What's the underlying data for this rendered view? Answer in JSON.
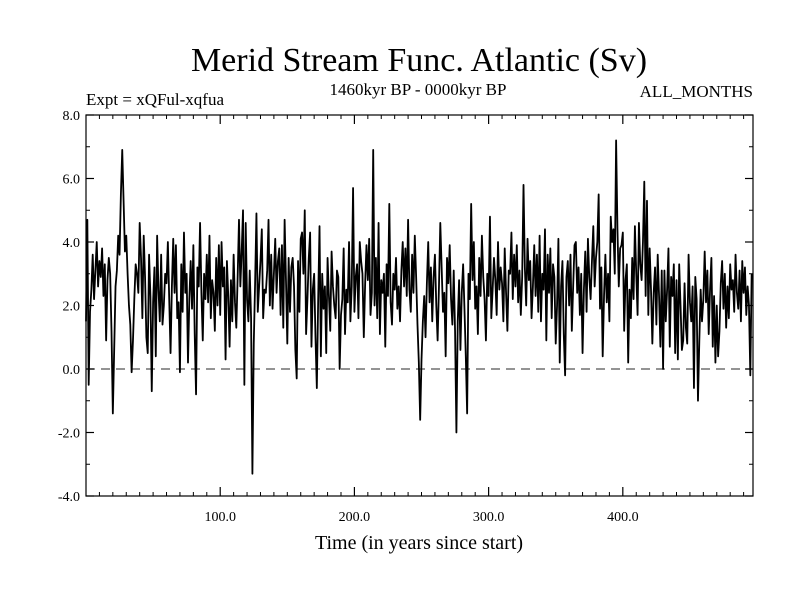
{
  "chart_data": {
    "type": "line",
    "title": "Merid Stream Func. Atlantic (Sv)",
    "subtitle_left": "Expt = xQFul-xqfua",
    "subtitle_center": "1460kyr BP - 0000kyr BP",
    "subtitle_right": "ALL_MONTHS",
    "xlabel": "Time (in years since start)",
    "ylabel": "",
    "xlim": [
      0,
      497
    ],
    "ylim": [
      -4.0,
      8.0
    ],
    "xticks": [
      100,
      200,
      300,
      400
    ],
    "xtick_labels": [
      "100.0",
      "200.0",
      "300.0",
      "400.0"
    ],
    "yticks": [
      -4,
      -2,
      0,
      2,
      4,
      6,
      8
    ],
    "ytick_labels": [
      "-4.0",
      "-2.0",
      "0.0",
      "2.0",
      "4.0",
      "6.0",
      "8.0"
    ],
    "reference_line": {
      "y": 0.0,
      "style": "dashed"
    },
    "line_color": "#000000",
    "series": [
      {
        "name": "Merid Stream Func. Atlantic",
        "x_start": 0,
        "x_step": 1,
        "values": [
          1.5,
          4.7,
          -0.5,
          1.8,
          2.5,
          3.6,
          2.2,
          3.1,
          4.0,
          2.6,
          3.4,
          2.9,
          3.8,
          2.3,
          3.3,
          0.9,
          2.8,
          3.5,
          3.0,
          1.2,
          -1.4,
          0.6,
          2.6,
          3.1,
          4.2,
          3.6,
          5.5,
          6.9,
          5.3,
          3.7,
          4.2,
          3.0,
          2.0,
          1.4,
          -0.1,
          0.9,
          2.2,
          3.3,
          3.0,
          2.4,
          4.6,
          3.5,
          1.6,
          4.2,
          2.9,
          1.0,
          0.5,
          3.6,
          2.3,
          -0.7,
          2.1,
          3.2,
          0.4,
          4.2,
          2.5,
          1.5,
          3.6,
          1.4,
          2.0,
          3.0,
          2.7,
          4.0,
          2.2,
          0.5,
          2.6,
          4.1,
          2.4,
          3.9,
          1.6,
          2.1,
          -0.1,
          3.3,
          1.8,
          4.3,
          2.4,
          3.0,
          0.2,
          2.2,
          3.4,
          1.9,
          3.9,
          1.1,
          -0.8,
          3.2,
          2.6,
          4.6,
          2.4,
          0.9,
          3.0,
          2.2,
          3.6,
          2.1,
          4.2,
          1.6,
          2.8,
          2.4,
          1.2,
          3.5,
          2.0,
          3.9,
          1.7,
          4.0,
          2.6,
          3.2,
          0.3,
          3.4,
          2.3,
          0.7,
          2.8,
          1.5,
          3.6,
          2.1,
          1.3,
          2.9,
          4.7,
          2.6,
          3.7,
          5.0,
          -0.5,
          4.6,
          2.2,
          1.5,
          3.1,
          1.6,
          -3.3,
          0.8,
          2.7,
          4.9,
          1.8,
          2.6,
          3.4,
          4.4,
          1.6,
          2.5,
          2.4,
          3.1,
          4.7,
          2.0,
          3.6,
          1.9,
          3.0,
          4.1,
          2.4,
          3.4,
          3.8,
          1.7,
          3.9,
          1.3,
          4.7,
          2.8,
          0.8,
          3.5,
          1.8,
          3.2,
          3.5,
          2.6,
          0.6,
          -0.3,
          3.4,
          1.8,
          4.1,
          4.3,
          3.0,
          5.0,
          1.1,
          2.2,
          3.5,
          4.3,
          0.7,
          2.5,
          3.0,
          1.0,
          -0.6,
          2.2,
          4.5,
          0.4,
          3.0,
          1.9,
          2.6,
          0.5,
          3.5,
          2.3,
          1.2,
          3.7,
          2.6,
          2.0,
          1.6,
          3.1,
          2.9,
          0.0,
          1.7,
          2.2,
          3.8,
          1.1,
          2.5,
          2.1,
          4.0,
          1.5,
          2.6,
          5.7,
          1.8,
          2.9,
          3.3,
          1.6,
          4.0,
          3.4,
          3.0,
          1.0,
          2.7,
          3.9,
          2.8,
          4.1,
          1.7,
          2.4,
          6.9,
          2.0,
          3.5,
          1.6,
          4.6,
          1.1,
          2.8,
          2.4,
          3.0,
          0.7,
          3.3,
          2.3,
          5.2,
          2.1,
          1.4,
          3.0,
          2.5,
          3.5,
          1.9,
          2.6,
          1.5,
          3.1,
          4.0,
          2.6,
          3.8,
          2.3,
          4.7,
          2.5,
          1.8,
          3.6,
          2.4,
          4.2,
          2.9,
          1.4,
          0.2,
          -1.6,
          0.3,
          1.5,
          2.3,
          1.0,
          2.7,
          4.0,
          2.1,
          3.2,
          1.5,
          2.9,
          3.6,
          2.0,
          0.9,
          2.6,
          4.6,
          3.2,
          1.8,
          2.4,
          0.4,
          3.5,
          2.7,
          3.9,
          2.2,
          1.4,
          3.1,
          1.2,
          -2.0,
          1.5,
          2.8,
          0.6,
          2.4,
          3.3,
          1.9,
          0.4,
          -1.4,
          3.0,
          2.2,
          5.2,
          2.8,
          4.0,
          1.9,
          2.6,
          1.1,
          3.5,
          2.3,
          4.2,
          2.9,
          2.2,
          0.9,
          3.0,
          2.3,
          4.8,
          1.6,
          2.5,
          3.5,
          2.8,
          1.7,
          4.0,
          2.5,
          3.2,
          2.7,
          1.5,
          3.8,
          2.4,
          1.2,
          3.1,
          3.0,
          4.3,
          2.2,
          3.6,
          2.6,
          3.9,
          2.1,
          3.1,
          1.7,
          2.9,
          5.8,
          3.2,
          2.0,
          4.1,
          2.8,
          3.4,
          1.6,
          2.6,
          3.9,
          2.3,
          3.6,
          1.8,
          4.2,
          1.5,
          3.0,
          2.5,
          4.4,
          0.9,
          3.6,
          2.4,
          3.8,
          1.6,
          3.3,
          2.9,
          0.8,
          2.0,
          4.1,
          0.2,
          2.6,
          3.4,
          1.1,
          -0.2,
          2.9,
          3.4,
          2.0,
          3.6,
          1.2,
          2.6,
          3.9,
          4.0,
          2.4,
          3.2,
          1.7,
          3.0,
          0.5,
          2.5,
          3.7,
          1.8,
          4.1,
          2.9,
          2.2,
          3.4,
          4.5,
          2.6,
          3.5,
          4.0,
          5.5,
          1.9,
          3.2,
          0.4,
          2.3,
          3.6,
          2.1,
          3.0,
          1.5,
          4.8,
          4.0,
          4.4,
          3.0,
          7.2,
          4.4,
          2.6,
          3.8,
          3.9,
          4.3,
          1.2,
          2.8,
          3.3,
          0.2,
          2.5,
          1.6,
          3.5,
          2.2,
          4.5,
          3.0,
          1.7,
          4.6,
          3.3,
          2.8,
          4.0,
          5.9,
          2.3,
          5.3,
          1.7,
          3.8,
          2.5,
          0.8,
          2.4,
          3.2,
          1.4,
          3.6,
          2.3,
          0.7,
          3.1,
          0.0,
          3.1,
          1.5,
          2.5,
          3.8,
          0.7,
          2.9,
          2.3,
          3.3,
          0.5,
          2.8,
          0.3,
          3.3,
          2.0,
          0.6,
          0.9,
          2.7,
          1.3,
          0.8,
          3.6,
          2.1,
          1.5,
          2.6,
          -0.6,
          2.9,
          2.2,
          -1.0,
          0.9,
          2.5,
          1.5,
          2.2,
          3.7,
          2.1,
          3.1,
          1.1,
          2.5,
          3.5,
          0.7,
          2.3,
          0.2,
          2.0,
          0.4,
          1.2,
          2.7,
          3.4,
          1.9,
          3.0,
          1.3,
          2.6,
          1.6,
          3.3,
          2.5,
          2.8,
          1.8,
          3.6,
          2.4,
          1.9,
          3.1,
          1.5,
          3.4,
          2.4,
          3.2,
          1.7,
          2.6,
          2.0,
          -0.2,
          3.0
        ]
      }
    ]
  }
}
